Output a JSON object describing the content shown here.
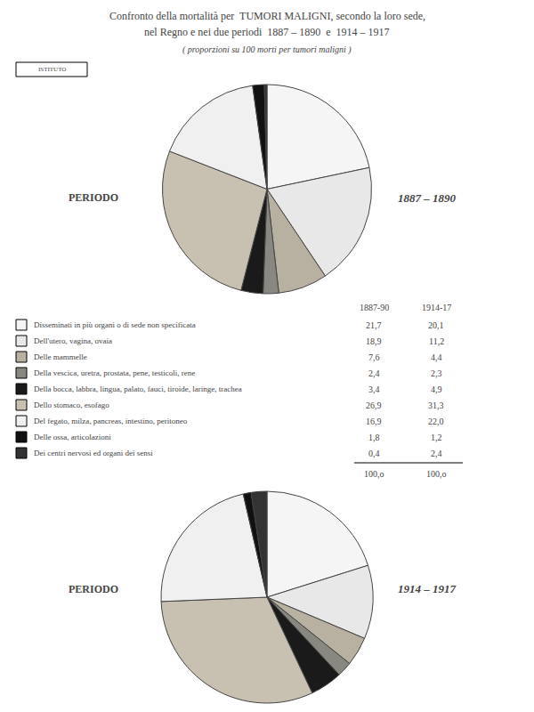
{
  "chart_data": [
    {
      "type": "pie",
      "title": [
        "Confronto della mortalità per  TUMORI MALIGNI, secondo la loro sede,",
        "nel Regno e nei due periodi  1887 – 1890  e  1914 – 1917"
      ],
      "subtitle": "( proporzioni su 100 morti per tumori maligni )",
      "annotations": [
        "ISTITUTO",
        "PERIODO",
        "1887 – 1890",
        "100,o"
      ],
      "categories": [
        "Disseminati in più organi o di sede non specificata",
        "Dell'utero, vagina, ovaia",
        "Delle mammelle",
        "Della vescica, uretra, prostata, pene, testicoli, rene",
        "Della bocca, labbra, lingua, palato, fauci, tiroide, laringe, trachea",
        "Dello stomaco, esofago",
        "Del fegato, milza, pancreas, intestino, peritoneo",
        "Delle ossa, articolazioni",
        "Dei centri nervosi ed organi dei sensi"
      ],
      "colors": [
        "#f5f5f5",
        "#e8e8e8",
        "#b8b0a0",
        "#888880",
        "#1a1a1a",
        "#c8c0b0",
        "#f0f0f0",
        "#111111",
        "#333333"
      ],
      "series": [
        {
          "name": "1887-90",
          "values": [
            21.7,
            18.9,
            7.6,
            2.4,
            3.4,
            26.9,
            16.9,
            1.8,
            0.4
          ],
          "value_labels": [
            "21,7",
            "18,9",
            "7,6",
            "2,4",
            "3,4",
            "26,9",
            "16,9",
            "1,8",
            "0,4"
          ]
        }
      ]
    },
    {
      "type": "pie",
      "annotations": [
        "PERIODO",
        "1914 – 1917",
        "100,o"
      ],
      "categories": [
        "Disseminati in più organi o di sede non specificata",
        "Dell'utero, vagina, ovaia",
        "Delle mammelle",
        "Della vescica, uretra, prostata, pene, testicoli, rene",
        "Della bocca, labbra, lingua, palato, fauci, tiroide, laringe, trachea",
        "Dello stomaco, esofago",
        "Del fegato, milza, pancreas, intestino, peritoneo",
        "Delle ossa, articolazioni",
        "Dei centri nervosi ed organi dei sensi"
      ],
      "colors": [
        "#f5f5f5",
        "#e8e8e8",
        "#b8b0a0",
        "#888880",
        "#1a1a1a",
        "#c8c0b0",
        "#f0f0f0",
        "#111111",
        "#333333"
      ],
      "series": [
        {
          "name": "1914-17",
          "values": [
            20.1,
            11.2,
            4.4,
            2.3,
            4.9,
            31.3,
            22.0,
            1.2,
            2.4
          ],
          "value_labels": [
            "20,1",
            "11,2",
            "4,4",
            "2,3",
            "4,9",
            "31,3",
            "22,0",
            "1,2",
            "2,4"
          ]
        }
      ]
    }
  ]
}
